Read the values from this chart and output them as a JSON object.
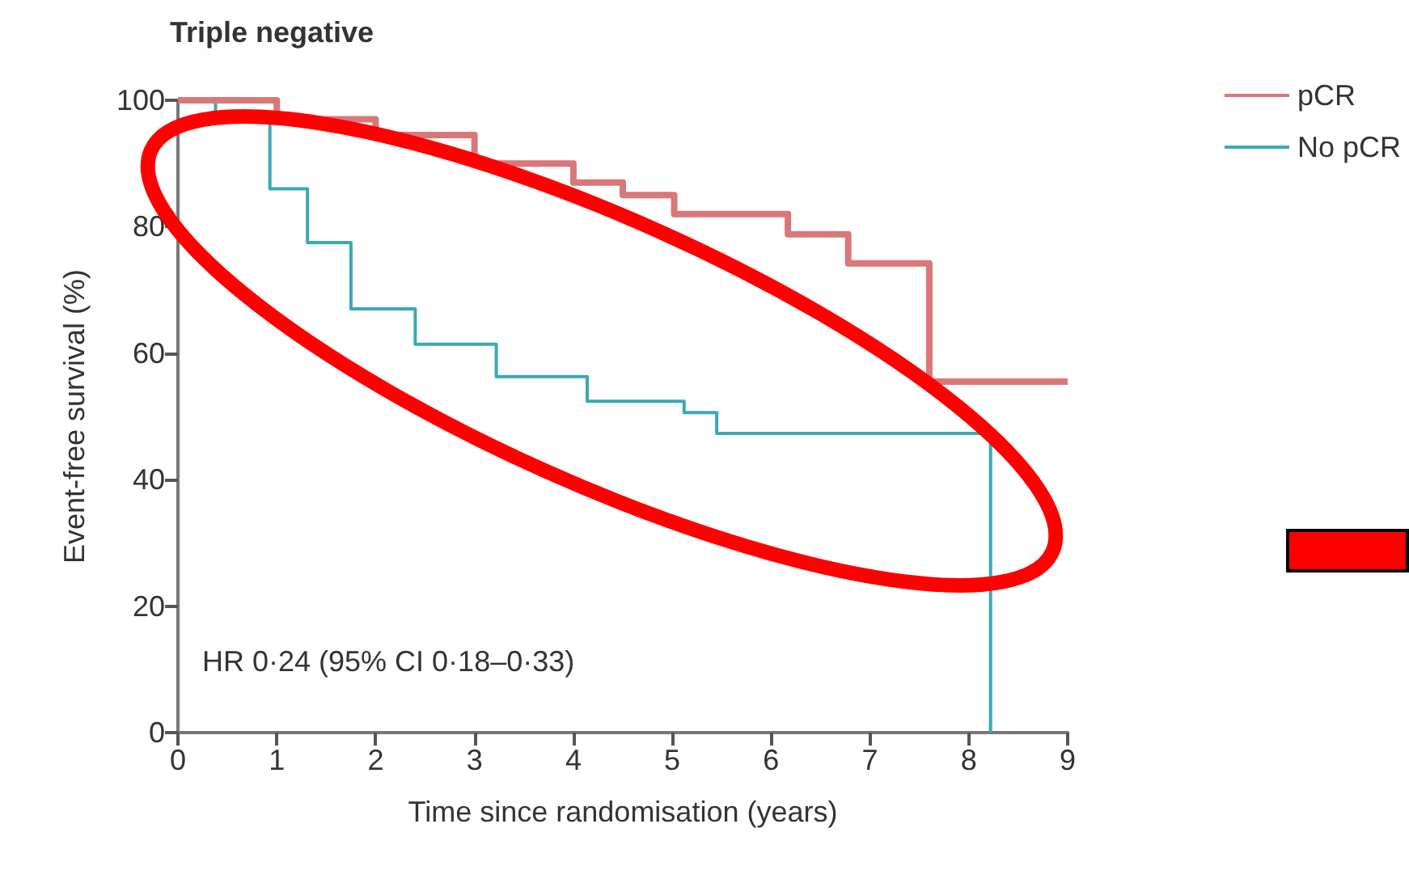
{
  "chart_data": {
    "type": "step",
    "title": "Triple negative",
    "xlabel": "Time since randomisation (years)",
    "ylabel": "Event-free survival (%)",
    "xlim": [
      0,
      9
    ],
    "xticks": [
      0,
      1,
      2,
      3,
      4,
      5,
      6,
      7,
      8,
      9
    ],
    "ylim": [
      0,
      100
    ],
    "yticks": [
      0,
      20,
      40,
      60,
      80,
      100
    ],
    "grid": false,
    "legend": "top right",
    "annotations": [
      "HR 0·24 (95% CI 0·18–0·33)"
    ],
    "series": [
      {
        "name": "pCR",
        "color": "#d9777a",
        "x": [
          0,
          0.3,
          1,
          2,
          3,
          4,
          4.5,
          5.02,
          6.17,
          6.78,
          7.6,
          9
        ],
        "values": [
          100,
          100,
          97,
          94.5,
          90,
          87,
          85,
          82,
          78.8,
          74.2,
          55.5,
          55.5
        ]
      },
      {
        "name": "No pCR",
        "color": "#3aa9b3",
        "x": [
          0,
          0.38,
          0.93,
          1.31,
          1.75,
          2.4,
          3.22,
          4.14,
          5.12,
          5.45,
          8.22
        ],
        "values": [
          100,
          98,
          86,
          77.5,
          67,
          61.4,
          56.3,
          52.4,
          50.6,
          47.3,
          0
        ]
      }
    ]
  }
}
